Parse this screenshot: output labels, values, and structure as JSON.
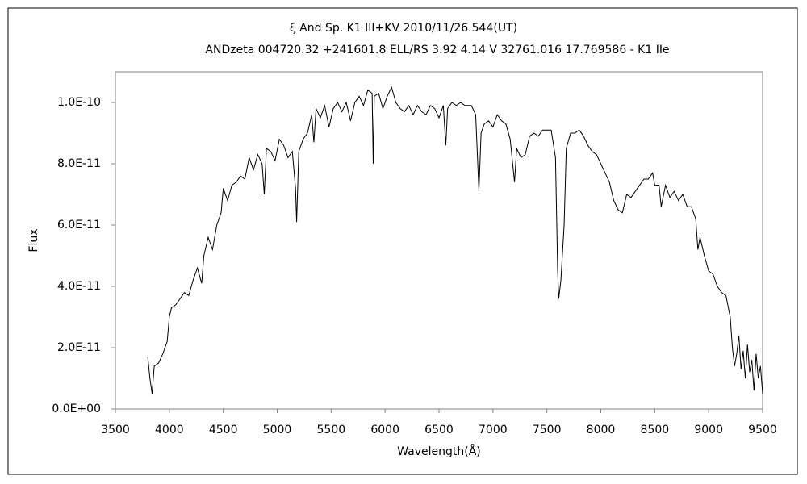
{
  "chart_data": {
    "type": "line",
    "title": "ξ  And    Sp. K1 III+KV    2010/11/26.544(UT)",
    "subtitle": "ANDzeta 004720.32 +241601.8 ELL/RS 3.92 4.14 V 32761.016 17.769586 - K1 IIe",
    "x_label": "Wavelength(Å)",
    "y_label": "Flux",
    "xlim": [
      3500,
      9500
    ],
    "xticks": [
      3500,
      4000,
      4500,
      5000,
      5500,
      6000,
      6500,
      7000,
      7500,
      8000,
      8500,
      9000,
      9500
    ],
    "ylim": [
      0,
      1.1e-10
    ],
    "yticks": [
      {
        "value": 0,
        "label": "0.0E+00"
      },
      {
        "value": 2e-11,
        "label": "2.0E-11"
      },
      {
        "value": 4e-11,
        "label": "4.0E-11"
      },
      {
        "value": 6e-11,
        "label": "6.0E-11"
      },
      {
        "value": 8e-11,
        "label": "8.0E-11"
      },
      {
        "value": 1e-10,
        "label": "1.0E-10"
      }
    ],
    "color": "#000000",
    "x": [
      3800,
      3820,
      3840,
      3860,
      3900,
      3940,
      3980,
      4000,
      4020,
      4060,
      4100,
      4140,
      4180,
      4220,
      4260,
      4300,
      4320,
      4360,
      4400,
      4440,
      4480,
      4500,
      4540,
      4580,
      4620,
      4660,
      4700,
      4740,
      4780,
      4820,
      4860,
      4880,
      4900,
      4940,
      4980,
      5020,
      5060,
      5100,
      5140,
      5170,
      5180,
      5200,
      5240,
      5280,
      5320,
      5340,
      5360,
      5400,
      5440,
      5480,
      5520,
      5560,
      5600,
      5640,
      5680,
      5720,
      5760,
      5800,
      5840,
      5880,
      5890,
      5900,
      5940,
      5980,
      6020,
      6060,
      6100,
      6140,
      6180,
      6220,
      6260,
      6300,
      6340,
      6380,
      6420,
      6460,
      6500,
      6540,
      6563,
      6580,
      6620,
      6660,
      6700,
      6740,
      6800,
      6840,
      6870,
      6890,
      6920,
      6960,
      7000,
      7040,
      7080,
      7120,
      7160,
      7200,
      7220,
      7260,
      7300,
      7340,
      7380,
      7420,
      7460,
      7500,
      7540,
      7580,
      7600,
      7610,
      7630,
      7660,
      7680,
      7720,
      7760,
      7800,
      7840,
      7880,
      7920,
      7960,
      8000,
      8040,
      8080,
      8120,
      8160,
      8200,
      8240,
      8280,
      8320,
      8360,
      8400,
      8440,
      8480,
      8500,
      8540,
      8560,
      8600,
      8640,
      8680,
      8720,
      8760,
      8800,
      8840,
      8880,
      8900,
      8920,
      8960,
      9000,
      9040,
      9080,
      9120,
      9160,
      9200,
      9220,
      9240,
      9260,
      9280,
      9300,
      9320,
      9340,
      9360,
      9380,
      9400,
      9420,
      9440,
      9460,
      9480,
      9500
    ],
    "values": [
      1.7e-11,
      1e-11,
      5e-12,
      1.4e-11,
      1.5e-11,
      1.8e-11,
      2.2e-11,
      3e-11,
      3.3e-11,
      3.4e-11,
      3.6e-11,
      3.8e-11,
      3.7e-11,
      4.2e-11,
      4.6e-11,
      4.1e-11,
      5e-11,
      5.6e-11,
      5.2e-11,
      6e-11,
      6.4e-11,
      7.2e-11,
      6.8e-11,
      7.3e-11,
      7.4e-11,
      7.6e-11,
      7.5e-11,
      8.2e-11,
      7.8e-11,
      8.3e-11,
      8e-11,
      7e-11,
      8.5e-11,
      8.4e-11,
      8.1e-11,
      8.8e-11,
      8.6e-11,
      8.2e-11,
      8.4e-11,
      7.2e-11,
      6.1e-11,
      8.4e-11,
      8.8e-11,
      9e-11,
      9.6e-11,
      8.7e-11,
      9.8e-11,
      9.5e-11,
      9.9e-11,
      9.2e-11,
      9.8e-11,
      1e-10,
      9.7e-11,
      1e-10,
      9.4e-11,
      1e-10,
      1.02e-10,
      9.9e-11,
      1.04e-10,
      1.03e-10,
      8e-11,
      1.02e-10,
      1.03e-10,
      9.8e-11,
      1.02e-10,
      1.05e-10,
      1e-10,
      9.8e-11,
      9.7e-11,
      9.9e-11,
      9.6e-11,
      9.9e-11,
      9.7e-11,
      9.6e-11,
      9.9e-11,
      9.8e-11,
      9.5e-11,
      9.9e-11,
      8.6e-11,
      9.8e-11,
      1e-10,
      9.9e-11,
      1e-10,
      9.9e-11,
      9.9e-11,
      9.6e-11,
      7.1e-11,
      9e-11,
      9.3e-11,
      9.4e-11,
      9.2e-11,
      9.6e-11,
      9.4e-11,
      9.3e-11,
      8.8e-11,
      7.4e-11,
      8.5e-11,
      8.2e-11,
      8.3e-11,
      8.9e-11,
      9e-11,
      8.9e-11,
      9.1e-11,
      9.1e-11,
      9.1e-11,
      8.2e-11,
      4.5e-11,
      3.6e-11,
      4.2e-11,
      6e-11,
      8.5e-11,
      9e-11,
      9e-11,
      9.1e-11,
      8.9e-11,
      8.6e-11,
      8.4e-11,
      8.3e-11,
      8e-11,
      7.7e-11,
      7.4e-11,
      6.8e-11,
      6.5e-11,
      6.4e-11,
      7e-11,
      6.9e-11,
      7.1e-11,
      7.3e-11,
      7.5e-11,
      7.5e-11,
      7.7e-11,
      7.3e-11,
      7.3e-11,
      6.6e-11,
      7.3e-11,
      6.9e-11,
      7.1e-11,
      6.8e-11,
      7e-11,
      6.6e-11,
      6.6e-11,
      6.2e-11,
      5.2e-11,
      5.6e-11,
      5e-11,
      4.5e-11,
      4.4e-11,
      4e-11,
      3.8e-11,
      3.7e-11,
      3e-11,
      2e-11,
      1.4e-11,
      1.8e-11,
      2.4e-11,
      1.3e-11,
      1.9e-11,
      1e-11,
      2.1e-11,
      1.2e-11,
      1.6e-11,
      6e-12,
      1.8e-11,
      1e-11,
      1.4e-11,
      5e-12
    ]
  }
}
